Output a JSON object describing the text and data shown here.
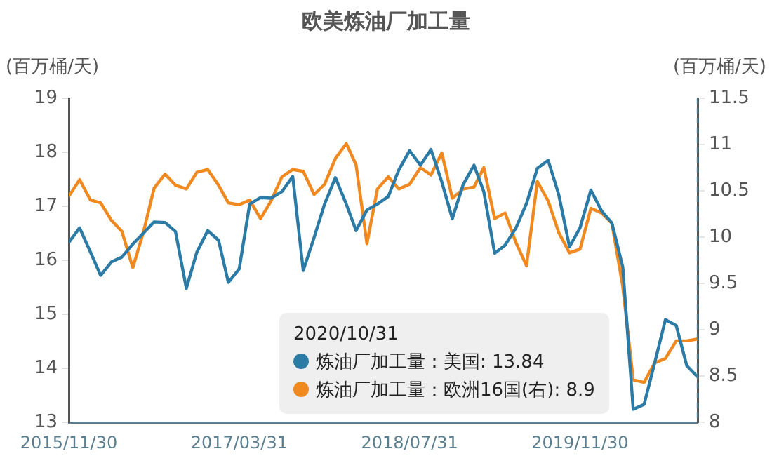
{
  "chart_data": {
    "type": "line",
    "title": "欧美炼油厂加工量",
    "ylabel": "(百万桶/天)",
    "y2label": "(百万桶/天)",
    "x": [
      "2015-11-30",
      "2015-12-31",
      "2016-01-31",
      "2016-02-29",
      "2016-03-31",
      "2016-04-30",
      "2016-05-31",
      "2016-06-30",
      "2016-07-31",
      "2016-08-31",
      "2016-09-30",
      "2016-10-31",
      "2016-11-30",
      "2016-12-31",
      "2017-01-31",
      "2017-02-28",
      "2017-03-31",
      "2017-04-30",
      "2017-05-31",
      "2017-06-30",
      "2017-07-31",
      "2017-08-31",
      "2017-09-30",
      "2017-10-31",
      "2017-11-30",
      "2017-12-31",
      "2018-01-31",
      "2018-02-28",
      "2018-03-31",
      "2018-04-30",
      "2018-05-31",
      "2018-06-30",
      "2018-07-31",
      "2018-08-31",
      "2018-09-30",
      "2018-10-31",
      "2018-11-30",
      "2018-12-31",
      "2019-01-31",
      "2019-02-28",
      "2019-03-31",
      "2019-04-30",
      "2019-05-31",
      "2019-06-30",
      "2019-07-31",
      "2019-08-31",
      "2019-09-30",
      "2019-10-31",
      "2019-11-30",
      "2019-12-31",
      "2020-01-31",
      "2020-02-29",
      "2020-03-31",
      "2020-04-30",
      "2020-05-31",
      "2020-06-30",
      "2020-07-31",
      "2020-08-31",
      "2020-09-30",
      "2020-10-31"
    ],
    "series": [
      {
        "name": "炼油厂加工量：美国",
        "color": "#2b7ba6",
        "values": [
          16.33,
          16.6,
          16.15,
          15.72,
          15.97,
          16.06,
          16.3,
          16.5,
          16.71,
          16.7,
          16.53,
          15.48,
          16.15,
          16.55,
          16.37,
          15.59,
          15.84,
          17.04,
          17.16,
          17.15,
          17.27,
          17.55,
          15.81,
          16.42,
          17.04,
          17.53,
          17.04,
          16.55,
          16.93,
          17.04,
          17.18,
          17.67,
          18.03,
          17.76,
          18.05,
          17.45,
          16.77,
          17.4,
          17.76,
          17.27,
          16.13,
          16.28,
          16.6,
          17.05,
          17.7,
          17.85,
          17.22,
          16.25,
          16.6,
          17.3,
          16.91,
          16.69,
          15.88,
          13.24,
          13.33,
          14.09,
          14.9,
          14.79,
          14.05,
          13.84
        ]
      },
      {
        "name": "炼油厂加工量：欧洲16国(右)",
        "color": "#f0891f",
        "axis": "y2",
        "values": [
          10.44,
          10.62,
          10.4,
          10.37,
          10.18,
          10.06,
          9.67,
          10.05,
          10.53,
          10.68,
          10.56,
          10.52,
          10.7,
          10.73,
          10.56,
          10.37,
          10.35,
          10.4,
          10.2,
          10.39,
          10.65,
          10.73,
          10.71,
          10.46,
          10.57,
          10.85,
          11.01,
          10.78,
          9.93,
          10.52,
          10.65,
          10.52,
          10.57,
          10.75,
          10.67,
          10.91,
          10.42,
          10.52,
          10.54,
          10.75,
          10.2,
          10.26,
          9.94,
          9.69,
          10.6,
          10.39,
          10.05,
          9.83,
          9.87,
          10.31,
          10.26,
          10.15,
          9.47,
          8.46,
          8.43,
          8.64,
          8.69,
          8.88,
          8.88,
          8.9
        ]
      }
    ],
    "xlim": [
      "2015-11-30",
      "2020-10-31"
    ],
    "xticks": [
      {
        "value": "2015-11-30",
        "label": "2015/11/30"
      },
      {
        "value": "2017-03-31",
        "label": "2017/03/31"
      },
      {
        "value": "2018-07-31",
        "label": "2018/07/31"
      },
      {
        "value": "2019-11-30",
        "label": "2019/11/30"
      }
    ],
    "ylim": [
      13,
      19
    ],
    "yticks": [
      13,
      14,
      15,
      16,
      17,
      18,
      19
    ],
    "y2lim": [
      8,
      11.5
    ],
    "y2ticks": [
      8,
      8.5,
      9,
      9.5,
      10,
      10.5,
      11,
      11.5
    ],
    "ref_lines": [
      {
        "axis": "x",
        "value": "2020-10-31",
        "color": "#4f7f8f",
        "line_style": "dashed"
      }
    ],
    "annotations": [
      "2020/10/31",
      ": 13.84",
      ": 8.9"
    ],
    "grid": false,
    "legend": "bottom",
    "marker": "none",
    "line_style": "solid"
  }
}
